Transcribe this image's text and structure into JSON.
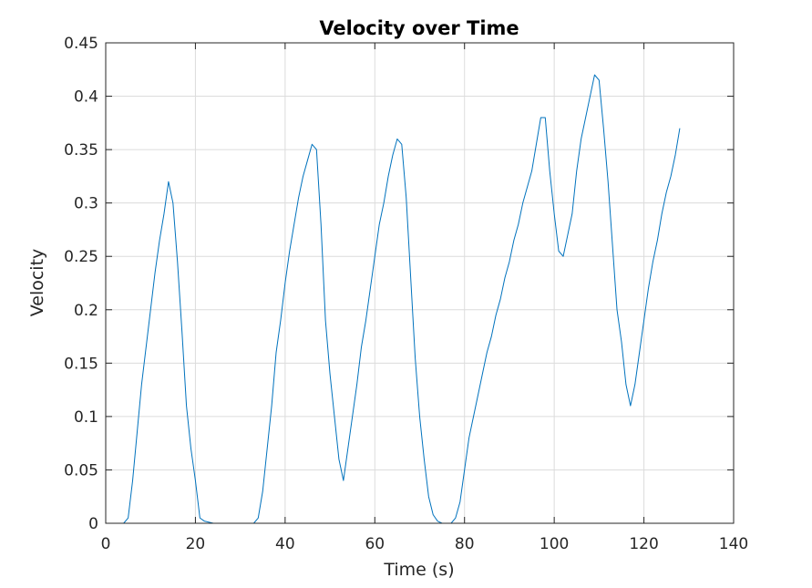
{
  "chart_data": {
    "type": "line",
    "title": "Velocity over Time",
    "xlabel": "Time (s)",
    "ylabel": "Velocity",
    "xlim": [
      0,
      140
    ],
    "ylim": [
      0,
      0.45
    ],
    "xticks": [
      0,
      20,
      40,
      60,
      80,
      100,
      120,
      140
    ],
    "xtick_labels": [
      "0",
      "20",
      "40",
      "60",
      "80",
      "100",
      "120",
      "140"
    ],
    "yticks": [
      0,
      0.05,
      0.1,
      0.15,
      0.2,
      0.25,
      0.3,
      0.35,
      0.4,
      0.45
    ],
    "ytick_labels": [
      "0",
      "0.05",
      "0.1",
      "0.15",
      "0.2",
      "0.25",
      "0.3",
      "0.35",
      "0.4",
      "0.45"
    ],
    "grid": true,
    "series": [
      {
        "color": "#0072bd",
        "x": [
          3,
          4,
          5,
          6,
          7,
          8,
          9,
          10,
          11,
          12,
          13,
          14,
          15,
          16,
          17,
          18,
          19,
          20,
          21,
          22,
          24,
          26,
          28,
          30,
          32,
          33,
          34,
          35,
          36,
          37,
          38,
          39,
          40,
          41,
          42,
          43,
          44,
          45,
          46,
          47,
          48,
          49,
          50,
          51,
          52,
          53,
          54,
          55,
          56,
          57,
          58,
          59,
          60,
          61,
          62,
          63,
          64,
          65,
          66,
          67,
          68,
          69,
          70,
          71,
          72,
          73,
          74,
          75,
          76,
          77,
          78,
          79,
          80,
          81,
          82,
          83,
          84,
          85,
          86,
          87,
          88,
          89,
          90,
          91,
          92,
          93,
          94,
          95,
          96,
          97,
          98,
          99,
          100,
          101,
          102,
          103,
          104,
          105,
          106,
          107,
          108,
          109,
          110,
          111,
          112,
          113,
          114,
          115,
          116,
          117,
          118,
          119,
          120,
          121,
          122,
          123,
          124,
          125,
          126,
          127,
          128
        ],
        "y": [
          0,
          0,
          0.005,
          0.04,
          0.085,
          0.13,
          0.165,
          0.2,
          0.235,
          0.265,
          0.29,
          0.32,
          0.3,
          0.245,
          0.18,
          0.11,
          0.07,
          0.04,
          0.005,
          0.002,
          0,
          0,
          0,
          0,
          0,
          0,
          0.005,
          0.03,
          0.07,
          0.11,
          0.16,
          0.19,
          0.225,
          0.255,
          0.28,
          0.305,
          0.325,
          0.34,
          0.355,
          0.35,
          0.28,
          0.19,
          0.14,
          0.1,
          0.06,
          0.04,
          0.07,
          0.1,
          0.13,
          0.165,
          0.19,
          0.22,
          0.25,
          0.28,
          0.3,
          0.325,
          0.345,
          0.36,
          0.355,
          0.305,
          0.23,
          0.155,
          0.1,
          0.06,
          0.025,
          0.008,
          0.002,
          0,
          0,
          0,
          0.005,
          0.02,
          0.05,
          0.08,
          0.1,
          0.12,
          0.14,
          0.16,
          0.175,
          0.195,
          0.21,
          0.23,
          0.245,
          0.265,
          0.28,
          0.3,
          0.315,
          0.33,
          0.355,
          0.38,
          0.38,
          0.33,
          0.29,
          0.255,
          0.25,
          0.27,
          0.29,
          0.33,
          0.36,
          0.38,
          0.4,
          0.42,
          0.415,
          0.37,
          0.32,
          0.26,
          0.2,
          0.17,
          0.13,
          0.11,
          0.13,
          0.16,
          0.19,
          0.22,
          0.245,
          0.265,
          0.29,
          0.31,
          0.325,
          0.345,
          0.37
        ]
      }
    ]
  }
}
